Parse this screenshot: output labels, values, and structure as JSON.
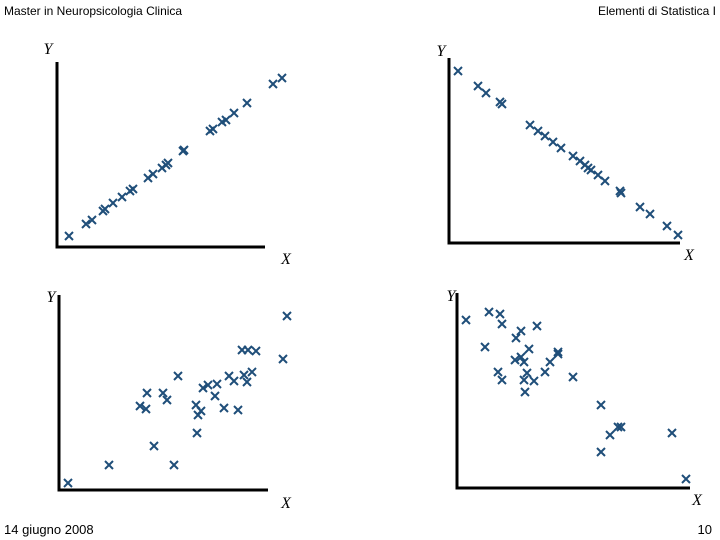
{
  "header": {
    "left": "Master in Neuropsicologia Clinica",
    "right": "Elementi di Statistica I"
  },
  "footer": {
    "date": "14 giugno 2008",
    "page": "10"
  },
  "chart_data": [
    {
      "type": "scatter",
      "x_label": "X",
      "y_label": "Y",
      "color": "#1f4e79",
      "xlim": [
        0,
        230
      ],
      "ylim": [
        0,
        185
      ],
      "x": [
        12,
        29,
        35,
        46,
        48,
        56,
        65,
        73,
        76,
        91,
        96,
        105,
        109,
        111,
        126,
        127,
        153,
        156,
        165,
        169,
        177,
        190,
        216,
        225
      ],
      "y": [
        11,
        23,
        27,
        36,
        38,
        44,
        50,
        56,
        58,
        69,
        73,
        79,
        82,
        84,
        96,
        97,
        116,
        118,
        125,
        127,
        134,
        144,
        163,
        169
      ]
    },
    {
      "type": "scatter",
      "x_label": "X",
      "y_label": "Y",
      "color": "#1f4e79",
      "xlim": [
        0,
        235
      ],
      "ylim": [
        0,
        185
      ],
      "x": [
        9,
        29,
        37,
        51,
        53,
        81,
        89,
        96,
        104,
        112,
        124,
        131,
        136,
        139,
        142,
        149,
        156,
        171,
        172,
        191,
        201,
        218,
        229
      ],
      "y": [
        172,
        157,
        150,
        141,
        139,
        118,
        112,
        107,
        101,
        95,
        87,
        82,
        78,
        75,
        73,
        68,
        62,
        52,
        50,
        36,
        29,
        17,
        8
      ]
    },
    {
      "type": "scatter",
      "x_label": "X",
      "y_label": "Y",
      "color": "#1f4e79",
      "xlim": [
        0,
        240
      ],
      "ylim": [
        0,
        195
      ],
      "x": [
        9,
        50,
        95,
        115,
        81,
        87,
        88,
        104,
        108,
        119,
        137,
        139,
        138,
        142,
        144,
        149,
        158,
        156,
        165,
        170,
        175,
        179,
        185,
        188,
        193,
        183,
        189,
        197,
        224,
        228
      ],
      "y": [
        7,
        25,
        44,
        25,
        84,
        81,
        97,
        97,
        90,
        114,
        85,
        75,
        57,
        79,
        102,
        105,
        106,
        94,
        82,
        114,
        109,
        80,
        115,
        108,
        118,
        140,
        140,
        139,
        131,
        174
      ]
    },
    {
      "type": "scatter",
      "x_label": "X",
      "y_label": "Y",
      "color": "#1f4e79",
      "xlim": [
        0,
        245
      ],
      "ylim": [
        0,
        195
      ],
      "x": [
        9,
        32,
        43,
        45,
        28,
        41,
        45,
        59,
        64,
        80,
        58,
        64,
        67,
        72,
        67,
        68,
        70,
        77,
        88,
        93,
        101,
        101,
        116,
        144,
        153,
        161,
        164,
        144,
        215,
        229
      ],
      "y": [
        168,
        176,
        174,
        164,
        141,
        116,
        108,
        150,
        157,
        162,
        128,
        131,
        126,
        139,
        108,
        96,
        115,
        107,
        116,
        126,
        136,
        134,
        111,
        83,
        53,
        61,
        61,
        36,
        55,
        9
      ]
    }
  ]
}
